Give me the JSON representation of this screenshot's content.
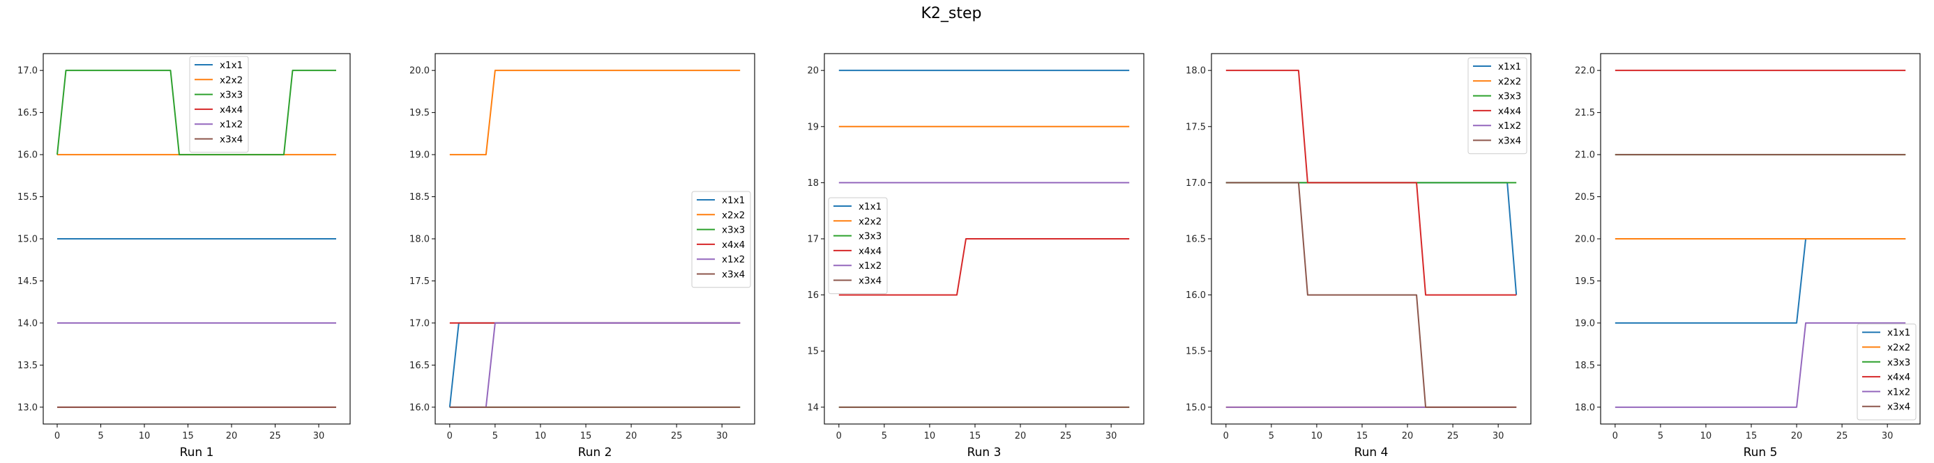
{
  "title": "K2_step",
  "chart_data": [
    {
      "type": "line",
      "xlabel": "Run 1",
      "xlim": [
        -1.6,
        33.6
      ],
      "ylim": [
        12.8,
        17.2
      ],
      "xticks": [
        0,
        5,
        10,
        15,
        20,
        25,
        30
      ],
      "yticks": [
        13.0,
        13.5,
        14.0,
        14.5,
        15.0,
        15.5,
        16.0,
        16.5,
        17.0
      ],
      "legend": "top-center",
      "series": [
        {
          "name": "x1x1",
          "color": "#1f77b4",
          "x": [
            0,
            32
          ],
          "y": [
            15,
            15
          ]
        },
        {
          "name": "x2x2",
          "color": "#ff7f0e",
          "x": [
            0,
            32
          ],
          "y": [
            16,
            16
          ]
        },
        {
          "name": "x3x3",
          "color": "#2ca02c",
          "x": [
            0,
            1,
            13,
            14,
            26,
            27,
            32
          ],
          "y": [
            16,
            17,
            17,
            16,
            16,
            17,
            17
          ]
        },
        {
          "name": "x4x4",
          "color": "#d62728",
          "x": [
            0,
            32
          ],
          "y": [
            13,
            13
          ]
        },
        {
          "name": "x1x2",
          "color": "#9467bd",
          "x": [
            0,
            32
          ],
          "y": [
            14,
            14
          ]
        },
        {
          "name": "x3x4",
          "color": "#8c564b",
          "x": [
            0,
            32
          ],
          "y": [
            13,
            13
          ]
        }
      ]
    },
    {
      "type": "line",
      "xlabel": "Run 2",
      "xlim": [
        -1.6,
        33.6
      ],
      "ylim": [
        15.8,
        20.2
      ],
      "xticks": [
        0,
        5,
        10,
        15,
        20,
        25,
        30
      ],
      "yticks": [
        16.0,
        16.5,
        17.0,
        17.5,
        18.0,
        18.5,
        19.0,
        19.5,
        20.0
      ],
      "legend": "center-right",
      "series": [
        {
          "name": "x1x1",
          "color": "#1f77b4",
          "x": [
            0,
            1,
            32
          ],
          "y": [
            16,
            17,
            17
          ]
        },
        {
          "name": "x2x2",
          "color": "#ff7f0e",
          "x": [
            0,
            4,
            5,
            32
          ],
          "y": [
            19,
            19,
            20,
            20
          ]
        },
        {
          "name": "x3x3",
          "color": "#2ca02c",
          "x": [
            0,
            32
          ],
          "y": [
            16,
            16
          ]
        },
        {
          "name": "x4x4",
          "color": "#d62728",
          "x": [
            0,
            32
          ],
          "y": [
            17,
            17
          ]
        },
        {
          "name": "x1x2",
          "color": "#9467bd",
          "x": [
            0,
            4,
            5,
            32
          ],
          "y": [
            16,
            16,
            17,
            17
          ]
        },
        {
          "name": "x3x4",
          "color": "#8c564b",
          "x": [
            0,
            32
          ],
          "y": [
            16,
            16
          ]
        }
      ]
    },
    {
      "type": "line",
      "xlabel": "Run 3",
      "xlim": [
        -1.6,
        33.6
      ],
      "ylim": [
        13.7,
        20.3
      ],
      "xticks": [
        0,
        5,
        10,
        15,
        20,
        25,
        30
      ],
      "yticks": [
        14,
        15,
        16,
        17,
        18,
        19,
        20
      ],
      "legend": "center-left",
      "series": [
        {
          "name": "x1x1",
          "color": "#1f77b4",
          "x": [
            0,
            32
          ],
          "y": [
            20,
            20
          ]
        },
        {
          "name": "x2x2",
          "color": "#ff7f0e",
          "x": [
            0,
            32
          ],
          "y": [
            19,
            19
          ]
        },
        {
          "name": "x3x3",
          "color": "#2ca02c",
          "x": [
            0,
            32
          ],
          "y": [
            14,
            14
          ]
        },
        {
          "name": "x4x4",
          "color": "#d62728",
          "x": [
            0,
            13,
            14,
            32
          ],
          "y": [
            16,
            16,
            17,
            17
          ]
        },
        {
          "name": "x1x2",
          "color": "#9467bd",
          "x": [
            0,
            32
          ],
          "y": [
            18,
            18
          ]
        },
        {
          "name": "x3x4",
          "color": "#8c564b",
          "x": [
            0,
            32
          ],
          "y": [
            14,
            14
          ]
        }
      ]
    },
    {
      "type": "line",
      "xlabel": "Run 4",
      "xlim": [
        -1.6,
        33.6
      ],
      "ylim": [
        14.85,
        18.15
      ],
      "xticks": [
        0,
        5,
        10,
        15,
        20,
        25,
        30
      ],
      "yticks": [
        15.0,
        15.5,
        16.0,
        16.5,
        17.0,
        17.5,
        18.0
      ],
      "legend": "top-right",
      "series": [
        {
          "name": "x1x1",
          "color": "#1f77b4",
          "x": [
            0,
            31,
            32
          ],
          "y": [
            17,
            17,
            16
          ]
        },
        {
          "name": "x2x2",
          "color": "#ff7f0e",
          "x": [
            0,
            32
          ],
          "y": [
            15,
            15
          ]
        },
        {
          "name": "x3x3",
          "color": "#2ca02c",
          "x": [
            0,
            32
          ],
          "y": [
            17,
            17
          ]
        },
        {
          "name": "x4x4",
          "color": "#d62728",
          "x": [
            0,
            8,
            9,
            21,
            22,
            32
          ],
          "y": [
            18,
            18,
            17,
            17,
            16,
            16
          ]
        },
        {
          "name": "x1x2",
          "color": "#9467bd",
          "x": [
            0,
            32
          ],
          "y": [
            15,
            15
          ]
        },
        {
          "name": "x3x4",
          "color": "#8c564b",
          "x": [
            0,
            8,
            9,
            21,
            22,
            32
          ],
          "y": [
            17,
            17,
            16,
            16,
            15,
            15
          ]
        }
      ]
    },
    {
      "type": "line",
      "xlabel": "Run 5",
      "xlim": [
        -1.6,
        33.6
      ],
      "ylim": [
        17.8,
        22.2
      ],
      "xticks": [
        0,
        5,
        10,
        15,
        20,
        25,
        30
      ],
      "yticks": [
        18.0,
        18.5,
        19.0,
        19.5,
        20.0,
        20.5,
        21.0,
        21.5,
        22.0
      ],
      "legend": "bottom-right",
      "series": [
        {
          "name": "x1x1",
          "color": "#1f77b4",
          "x": [
            0,
            20,
            21,
            32
          ],
          "y": [
            19,
            19,
            20,
            20
          ]
        },
        {
          "name": "x2x2",
          "color": "#ff7f0e",
          "x": [
            0,
            32
          ],
          "y": [
            20,
            20
          ]
        },
        {
          "name": "x3x3",
          "color": "#2ca02c",
          "x": [
            0,
            32
          ],
          "y": [
            21,
            21
          ]
        },
        {
          "name": "x4x4",
          "color": "#d62728",
          "x": [
            0,
            32
          ],
          "y": [
            22,
            22
          ]
        },
        {
          "name": "x1x2",
          "color": "#9467bd",
          "x": [
            0,
            20,
            21,
            32
          ],
          "y": [
            18,
            18,
            19,
            19
          ]
        },
        {
          "name": "x3x4",
          "color": "#8c564b",
          "x": [
            0,
            32
          ],
          "y": [
            21,
            21
          ]
        }
      ]
    }
  ]
}
